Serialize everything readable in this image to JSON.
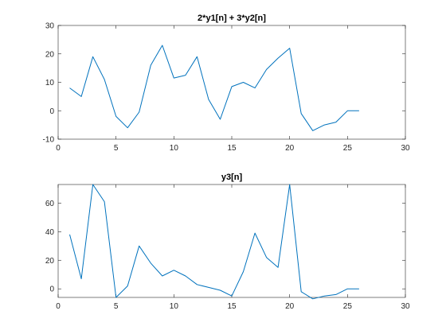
{
  "chart_data": [
    {
      "type": "line",
      "title": "2*y1[n] + 3*y2[n]",
      "xlabel": "",
      "ylabel": "",
      "xlim": [
        0,
        30
      ],
      "ylim": [
        -10,
        30
      ],
      "xticks": [
        0,
        5,
        10,
        15,
        20,
        25,
        30
      ],
      "yticks": [
        -10,
        0,
        10,
        20,
        30
      ],
      "grid": false,
      "color": "#0072BD",
      "series": [
        {
          "x": [
            1,
            2,
            3,
            4,
            5,
            6,
            7,
            8,
            9,
            10,
            11,
            12,
            13,
            14,
            15,
            16,
            17,
            18,
            19,
            20,
            21,
            22,
            23,
            24,
            25,
            26
          ],
          "values": [
            8,
            5,
            19,
            11,
            -2,
            -6,
            -0.5,
            16,
            23,
            11.5,
            12.5,
            19,
            4,
            -3,
            8.5,
            10,
            8,
            14.5,
            18.5,
            22,
            -1,
            -7,
            -5,
            -4,
            0,
            0
          ]
        }
      ]
    },
    {
      "type": "line",
      "title": "y3[n]",
      "xlabel": "",
      "ylabel": "",
      "xlim": [
        0,
        30
      ],
      "ylim": [
        -6,
        73
      ],
      "xticks": [
        0,
        5,
        10,
        15,
        20,
        25,
        30
      ],
      "yticks": [
        0,
        20,
        40,
        60
      ],
      "grid": false,
      "color": "#0072BD",
      "series": [
        {
          "x": [
            1,
            2,
            3,
            4,
            5,
            6,
            7,
            8,
            9,
            10,
            11,
            12,
            13,
            14,
            15,
            16,
            17,
            18,
            19,
            20,
            21,
            22,
            23,
            24,
            25,
            26
          ],
          "values": [
            38,
            7,
            73,
            61,
            -6,
            2,
            30,
            18,
            9,
            13,
            9,
            3,
            1,
            -1,
            -5,
            12,
            39,
            22,
            15,
            73,
            -2,
            -7,
            -5,
            -4,
            0,
            0
          ]
        }
      ]
    }
  ]
}
